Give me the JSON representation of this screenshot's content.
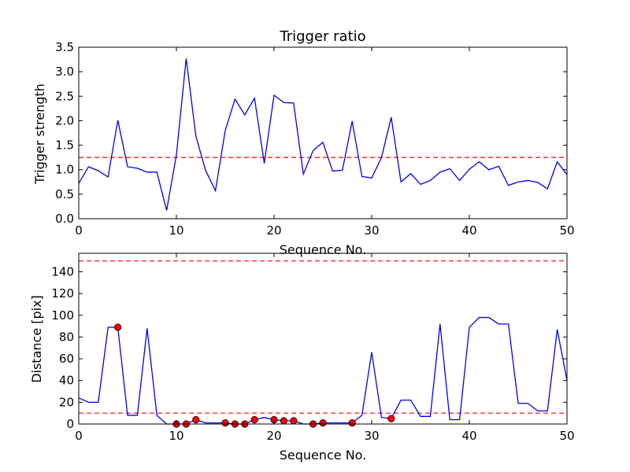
{
  "chart_data": [
    {
      "type": "line",
      "title": "Trigger ratio",
      "xlabel": "Sequence No.",
      "ylabel": "Trigger strength",
      "xlim": [
        0,
        50
      ],
      "ylim": [
        0,
        3.5
      ],
      "xticks": [
        "0",
        "10",
        "20",
        "30",
        "40",
        "50"
      ],
      "yticks": [
        "0.0",
        "0.5",
        "1.0",
        "1.5",
        "2.0",
        "2.5",
        "3.0",
        "3.5"
      ],
      "grid": false,
      "series": [
        {
          "color": "#0000ff",
          "x": [
            0,
            1,
            2,
            3,
            4,
            5,
            6,
            7,
            8,
            9,
            10,
            11,
            12,
            13,
            14,
            15,
            16,
            17,
            18,
            19,
            20,
            21,
            22,
            23,
            24,
            25,
            26,
            27,
            28,
            29,
            30,
            31,
            32,
            33,
            34,
            35,
            36,
            37,
            38,
            39,
            40,
            41,
            42,
            43,
            44,
            45,
            46,
            47,
            48,
            49,
            50
          ],
          "values": [
            0.72,
            1.06,
            0.98,
            0.85,
            2.01,
            1.06,
            1.03,
            0.95,
            0.95,
            0.17,
            1.3,
            3.27,
            1.68,
            0.98,
            0.57,
            1.8,
            2.44,
            2.12,
            2.46,
            1.13,
            2.52,
            2.37,
            2.36,
            0.91,
            1.39,
            1.56,
            0.97,
            0.99,
            1.99,
            0.86,
            0.83,
            1.25,
            2.07,
            0.75,
            0.92,
            0.7,
            0.78,
            0.95,
            1.02,
            0.78,
            1.01,
            1.16,
            1.0,
            1.07,
            0.68,
            0.75,
            0.78,
            0.74,
            0.61,
            1.16,
            0.9
          ]
        }
      ],
      "hlines": [
        {
          "y": 1.25,
          "color": "#ff0000",
          "style": "dashed"
        }
      ]
    },
    {
      "type": "line",
      "title": "",
      "xlabel": "Sequence No.",
      "ylabel": "Distance [pix]",
      "xlim": [
        0,
        50
      ],
      "ylim": [
        0,
        157
      ],
      "xticks": [
        "0",
        "10",
        "20",
        "30",
        "40",
        "50"
      ],
      "yticks": [
        "0",
        "20",
        "40",
        "60",
        "80",
        "100",
        "120",
        "140"
      ],
      "grid": false,
      "series": [
        {
          "color": "#0000ff",
          "x": [
            0,
            1,
            2,
            3,
            4,
            5,
            6,
            7,
            8,
            9,
            10,
            11,
            12,
            13,
            14,
            15,
            16,
            17,
            18,
            19,
            20,
            21,
            22,
            23,
            24,
            25,
            26,
            27,
            28,
            29,
            30,
            31,
            32,
            33,
            34,
            35,
            36,
            37,
            38,
            39,
            40,
            41,
            42,
            43,
            44,
            45,
            46,
            47,
            48,
            49,
            50
          ],
          "values": [
            24,
            20,
            20,
            89,
            89,
            8,
            8,
            88,
            8,
            0,
            0,
            0,
            4,
            1,
            1,
            1,
            0,
            0,
            4,
            6,
            4,
            3,
            3,
            0,
            0,
            1,
            1,
            1,
            1,
            8,
            66,
            6,
            5,
            22,
            22,
            7,
            7,
            92,
            4,
            4,
            89,
            98,
            98,
            92,
            92,
            19,
            19,
            12,
            12,
            87,
            40
          ]
        }
      ],
      "markers": {
        "color": "#ff0000",
        "x": [
          4,
          10,
          11,
          12,
          15,
          16,
          17,
          18,
          20,
          21,
          22,
          24,
          25,
          28,
          32
        ],
        "y": [
          89,
          0,
          0,
          4,
          1,
          0,
          0,
          4,
          4,
          3,
          3,
          0,
          1,
          1,
          5
        ]
      },
      "hlines": [
        {
          "y": 150,
          "color": "#ff0000",
          "style": "dashed"
        },
        {
          "y": 10,
          "color": "#ff0000",
          "style": "dashed"
        }
      ]
    }
  ]
}
